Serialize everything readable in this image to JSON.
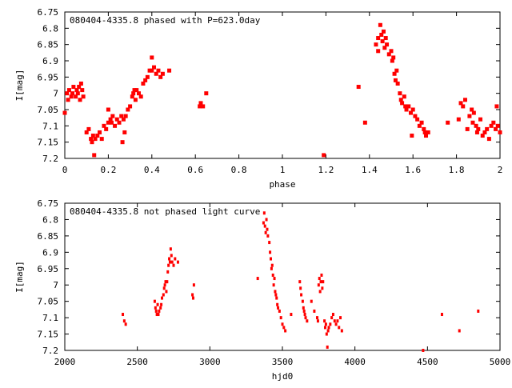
{
  "chart_data": [
    {
      "type": "scatter",
      "title": "080404-4335.8 phased with P=623.0day",
      "xlabel": "phase",
      "ylabel": "I[mag]",
      "xlim": [
        0,
        2
      ],
      "ylim": [
        6.75,
        7.2
      ],
      "y_inverted": true,
      "grid": false,
      "color": "#ff0000",
      "x_ticks": [
        "0",
        "0.2",
        "0.4",
        "0.6",
        "0.8",
        "1",
        "1.2",
        "1.4",
        "1.6",
        "1.8",
        "2"
      ],
      "y_ticks": [
        "6.75",
        "6.8",
        "6.85",
        "6.9",
        "6.95",
        "7",
        "7.05",
        "7.1",
        "7.15",
        "7.2"
      ],
      "points": [
        [
          0.0,
          7.06
        ],
        [
          0.01,
          7.0
        ],
        [
          0.015,
          7.02
        ],
        [
          0.02,
          6.99
        ],
        [
          0.03,
          7.01
        ],
        [
          0.035,
          7.0
        ],
        [
          0.04,
          6.98
        ],
        [
          0.05,
          7.01
        ],
        [
          0.055,
          6.99
        ],
        [
          0.06,
          7.0
        ],
        [
          0.065,
          6.98
        ],
        [
          0.07,
          7.02
        ],
        [
          0.075,
          6.97
        ],
        [
          0.08,
          6.99
        ],
        [
          0.085,
          7.01
        ],
        [
          0.1,
          7.12
        ],
        [
          0.11,
          7.11
        ],
        [
          0.12,
          7.14
        ],
        [
          0.125,
          7.15
        ],
        [
          0.13,
          7.13
        ],
        [
          0.135,
          7.19
        ],
        [
          0.14,
          7.14
        ],
        [
          0.15,
          7.13
        ],
        [
          0.16,
          7.12
        ],
        [
          0.17,
          7.14
        ],
        [
          0.18,
          7.1
        ],
        [
          0.19,
          7.11
        ],
        [
          0.2,
          7.09
        ],
        [
          0.2,
          7.05
        ],
        [
          0.21,
          7.08
        ],
        [
          0.215,
          7.09
        ],
        [
          0.22,
          7.07
        ],
        [
          0.23,
          7.1
        ],
        [
          0.24,
          7.08
        ],
        [
          0.25,
          7.09
        ],
        [
          0.26,
          7.07
        ],
        [
          0.265,
          7.15
        ],
        [
          0.27,
          7.08
        ],
        [
          0.275,
          7.12
        ],
        [
          0.28,
          7.07
        ],
        [
          0.29,
          7.05
        ],
        [
          0.3,
          7.04
        ],
        [
          0.31,
          7.01
        ],
        [
          0.315,
          7.0
        ],
        [
          0.32,
          6.99
        ],
        [
          0.325,
          7.02
        ],
        [
          0.33,
          6.99
        ],
        [
          0.34,
          7.0
        ],
        [
          0.35,
          7.01
        ],
        [
          0.36,
          6.97
        ],
        [
          0.37,
          6.96
        ],
        [
          0.38,
          6.95
        ],
        [
          0.39,
          6.93
        ],
        [
          0.4,
          6.93
        ],
        [
          0.4,
          6.89
        ],
        [
          0.41,
          6.92
        ],
        [
          0.42,
          6.94
        ],
        [
          0.43,
          6.93
        ],
        [
          0.44,
          6.95
        ],
        [
          0.45,
          6.94
        ],
        [
          0.48,
          6.93
        ],
        [
          0.62,
          7.04
        ],
        [
          0.625,
          7.03
        ],
        [
          0.635,
          7.04
        ],
        [
          0.65,
          7.0
        ],
        [
          1.19,
          7.19
        ],
        [
          1.35,
          6.98
        ],
        [
          1.38,
          7.09
        ],
        [
          1.43,
          6.85
        ],
        [
          1.44,
          6.83
        ],
        [
          1.44,
          6.87
        ],
        [
          1.45,
          6.79
        ],
        [
          1.455,
          6.82
        ],
        [
          1.46,
          6.84
        ],
        [
          1.465,
          6.81
        ],
        [
          1.47,
          6.86
        ],
        [
          1.475,
          6.83
        ],
        [
          1.48,
          6.85
        ],
        [
          1.49,
          6.88
        ],
        [
          1.5,
          6.87
        ],
        [
          1.505,
          6.9
        ],
        [
          1.51,
          6.89
        ],
        [
          1.515,
          6.94
        ],
        [
          1.52,
          6.96
        ],
        [
          1.525,
          6.93
        ],
        [
          1.53,
          6.97
        ],
        [
          1.54,
          7.0
        ],
        [
          1.545,
          7.02
        ],
        [
          1.55,
          7.03
        ],
        [
          1.56,
          7.01
        ],
        [
          1.565,
          7.04
        ],
        [
          1.57,
          7.05
        ],
        [
          1.58,
          7.04
        ],
        [
          1.59,
          7.06
        ],
        [
          1.595,
          7.13
        ],
        [
          1.6,
          7.05
        ],
        [
          1.61,
          7.07
        ],
        [
          1.62,
          7.08
        ],
        [
          1.63,
          7.1
        ],
        [
          1.64,
          7.09
        ],
        [
          1.65,
          7.11
        ],
        [
          1.655,
          7.12
        ],
        [
          1.66,
          7.13
        ],
        [
          1.67,
          7.12
        ],
        [
          1.76,
          7.09
        ],
        [
          1.81,
          7.08
        ],
        [
          1.82,
          7.03
        ],
        [
          1.83,
          7.04
        ],
        [
          1.84,
          7.02
        ],
        [
          1.85,
          7.11
        ],
        [
          1.86,
          7.07
        ],
        [
          1.87,
          7.05
        ],
        [
          1.875,
          7.09
        ],
        [
          1.88,
          7.06
        ],
        [
          1.89,
          7.1
        ],
        [
          1.895,
          7.12
        ],
        [
          1.9,
          7.11
        ],
        [
          1.91,
          7.08
        ],
        [
          1.92,
          7.13
        ],
        [
          1.93,
          7.12
        ],
        [
          1.94,
          7.11
        ],
        [
          1.95,
          7.14
        ],
        [
          1.96,
          7.1
        ],
        [
          1.97,
          7.09
        ],
        [
          1.98,
          7.11
        ],
        [
          1.985,
          7.04
        ],
        [
          1.99,
          7.1
        ],
        [
          2.0,
          7.12
        ]
      ]
    },
    {
      "type": "scatter",
      "title": "080404-4335.8 not phased light curve",
      "xlabel": "hjd0",
      "ylabel": "I[mag]",
      "xlim": [
        2000,
        5000
      ],
      "ylim": [
        6.75,
        7.2
      ],
      "y_inverted": true,
      "grid": false,
      "color": "#ff0000",
      "x_ticks": [
        "2000",
        "2500",
        "3000",
        "3500",
        "4000",
        "4500",
        "5000"
      ],
      "y_ticks": [
        "6.75",
        "6.8",
        "6.85",
        "6.9",
        "6.95",
        "7",
        "7.05",
        "7.1",
        "7.15",
        "7.2"
      ],
      "points": [
        [
          2400,
          7.09
        ],
        [
          2410,
          7.11
        ],
        [
          2420,
          7.12
        ],
        [
          2620,
          7.05
        ],
        [
          2625,
          7.07
        ],
        [
          2630,
          7.08
        ],
        [
          2635,
          7.09
        ],
        [
          2640,
          7.06
        ],
        [
          2645,
          7.09
        ],
        [
          2650,
          7.08
        ],
        [
          2660,
          7.07
        ],
        [
          2665,
          7.06
        ],
        [
          2670,
          7.04
        ],
        [
          2680,
          7.03
        ],
        [
          2685,
          7.01
        ],
        [
          2690,
          7.0
        ],
        [
          2695,
          6.99
        ],
        [
          2700,
          7.02
        ],
        [
          2705,
          6.99
        ],
        [
          2710,
          6.96
        ],
        [
          2715,
          6.94
        ],
        [
          2720,
          6.92
        ],
        [
          2725,
          6.93
        ],
        [
          2730,
          6.89
        ],
        [
          2735,
          6.91
        ],
        [
          2740,
          6.93
        ],
        [
          2750,
          6.94
        ],
        [
          2760,
          6.92
        ],
        [
          2780,
          6.93
        ],
        [
          2880,
          7.03
        ],
        [
          2885,
          7.04
        ],
        [
          2890,
          7.0
        ],
        [
          3330,
          6.98
        ],
        [
          3370,
          6.81
        ],
        [
          3375,
          6.78
        ],
        [
          3380,
          6.82
        ],
        [
          3385,
          6.84
        ],
        [
          3390,
          6.8
        ],
        [
          3395,
          6.83
        ],
        [
          3400,
          6.85
        ],
        [
          3410,
          6.87
        ],
        [
          3415,
          6.9
        ],
        [
          3420,
          6.92
        ],
        [
          3425,
          6.95
        ],
        [
          3430,
          6.94
        ],
        [
          3435,
          6.97
        ],
        [
          3440,
          7.0
        ],
        [
          3445,
          6.98
        ],
        [
          3450,
          7.02
        ],
        [
          3455,
          7.03
        ],
        [
          3460,
          7.04
        ],
        [
          3465,
          7.06
        ],
        [
          3470,
          7.07
        ],
        [
          3480,
          7.08
        ],
        [
          3490,
          7.1
        ],
        [
          3500,
          7.12
        ],
        [
          3510,
          7.13
        ],
        [
          3520,
          7.14
        ],
        [
          3560,
          7.09
        ],
        [
          3620,
          6.99
        ],
        [
          3625,
          7.01
        ],
        [
          3630,
          7.03
        ],
        [
          3640,
          7.05
        ],
        [
          3645,
          7.07
        ],
        [
          3650,
          7.08
        ],
        [
          3655,
          7.09
        ],
        [
          3660,
          7.1
        ],
        [
          3670,
          7.11
        ],
        [
          3700,
          7.05
        ],
        [
          3720,
          7.08
        ],
        [
          3740,
          7.1
        ],
        [
          3745,
          7.11
        ],
        [
          3750,
          7.0
        ],
        [
          3755,
          6.98
        ],
        [
          3760,
          7.02
        ],
        [
          3765,
          6.99
        ],
        [
          3770,
          6.97
        ],
        [
          3775,
          7.01
        ],
        [
          3780,
          6.99
        ],
        [
          3790,
          7.11
        ],
        [
          3795,
          7.13
        ],
        [
          3800,
          7.12
        ],
        [
          3805,
          7.15
        ],
        [
          3810,
          7.19
        ],
        [
          3815,
          7.14
        ],
        [
          3820,
          7.13
        ],
        [
          3830,
          7.12
        ],
        [
          3840,
          7.1
        ],
        [
          3850,
          7.09
        ],
        [
          3860,
          7.11
        ],
        [
          3870,
          7.12
        ],
        [
          3880,
          7.11
        ],
        [
          3890,
          7.13
        ],
        [
          3900,
          7.1
        ],
        [
          3910,
          7.14
        ],
        [
          4470,
          7.2
        ],
        [
          4600,
          7.09
        ],
        [
          4720,
          7.14
        ],
        [
          4850,
          7.08
        ]
      ]
    }
  ]
}
